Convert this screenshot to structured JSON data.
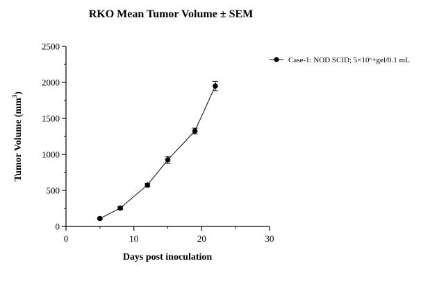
{
  "chart_data": {
    "type": "line",
    "title": "RKO Mean Tumor Volume ± SEM",
    "xlabel": "Days post inoculation",
    "ylabel_main": "Tumor Volume (mm",
    "ylabel_sup": "3",
    "ylabel_end": ")",
    "xlim": [
      0,
      30
    ],
    "ylim": [
      0,
      2500
    ],
    "x_ticks": [
      0,
      10,
      20,
      30
    ],
    "y_ticks": [
      0,
      500,
      1000,
      1500,
      2000,
      2500
    ],
    "grid": false,
    "legend_position": "top-right",
    "series": [
      {
        "name": "Case-1: NOD SCID; 5×10⁶+gel/0.1 mL",
        "color": "#000000",
        "marker": "circle",
        "x": [
          5,
          8,
          12,
          15,
          19,
          22
        ],
        "y": [
          110,
          255,
          575,
          925,
          1325,
          1950
        ],
        "sem": [
          15,
          20,
          25,
          50,
          40,
          65
        ]
      }
    ]
  }
}
